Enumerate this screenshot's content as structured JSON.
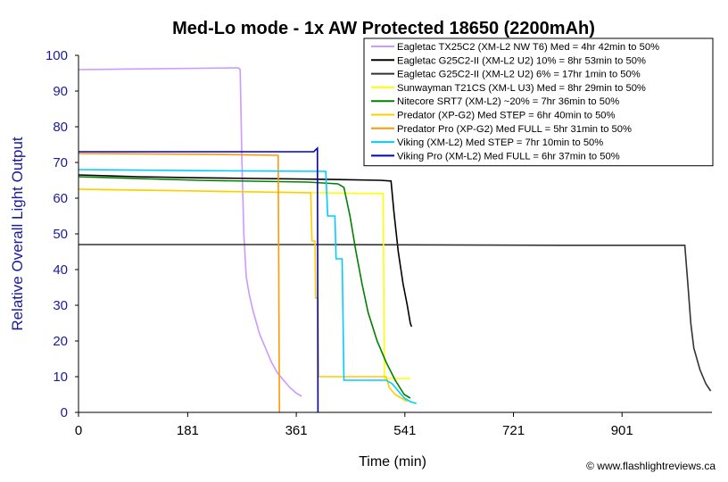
{
  "chart_data": {
    "type": "line",
    "title": "Med-Lo mode - 1x AW Protected 18650 (2200mAh)",
    "xlabel": "Time (min)",
    "ylabel": "Relative Overall Light Output",
    "xticks": [
      0,
      181,
      361,
      541,
      721,
      901
    ],
    "yticks": [
      0,
      10,
      20,
      30,
      40,
      50,
      60,
      70,
      80,
      90,
      100
    ],
    "xlim": [
      0,
      1050
    ],
    "ylim": [
      0,
      100
    ],
    "grid": false,
    "legend_position": "top-right",
    "credit": "© www.flashlightreviews.ca",
    "series": [
      {
        "name": "Eagletac TX25C2 (XM-L2 NW T6) Med = 4hr 42min to 50%",
        "color": "#cc99ff",
        "points": [
          [
            0,
            96
          ],
          [
            265,
            96.5
          ],
          [
            268,
            96
          ],
          [
            271,
            70
          ],
          [
            274,
            50
          ],
          [
            278,
            38
          ],
          [
            283,
            33
          ],
          [
            290,
            28
          ],
          [
            300,
            22
          ],
          [
            310,
            18
          ],
          [
            320,
            14
          ],
          [
            330,
            11
          ],
          [
            340,
            9
          ],
          [
            350,
            7
          ],
          [
            360,
            5.5
          ],
          [
            370,
            4.5
          ]
        ]
      },
      {
        "name": "Eagletac G25C2-II (XM-L2 U2) 10% = 8hr 53min to 50%",
        "color": "#000000",
        "points": [
          [
            0,
            66.5
          ],
          [
            100,
            66
          ],
          [
            200,
            65.7
          ],
          [
            300,
            65.5
          ],
          [
            400,
            65.3
          ],
          [
            500,
            65
          ],
          [
            518,
            64.8
          ],
          [
            523,
            56
          ],
          [
            530,
            45
          ],
          [
            538,
            36
          ],
          [
            545,
            30
          ],
          [
            550,
            25
          ],
          [
            552,
            24
          ]
        ]
      },
      {
        "name": "Eagletac G25C2-II (XM-L2 U2) 6% = 17hr 1min to 50%",
        "color": "#333333",
        "points": [
          [
            0,
            47
          ],
          [
            400,
            47
          ],
          [
            800,
            46.8
          ],
          [
            1005,
            46.8
          ],
          [
            1010,
            36
          ],
          [
            1015,
            25
          ],
          [
            1020,
            18
          ],
          [
            1030,
            12
          ],
          [
            1040,
            8
          ],
          [
            1048,
            6
          ]
        ]
      },
      {
        "name": "Sunwayman T21CS (XM-L U3) Med = 8hr 29min to 50%",
        "color": "#ffff00",
        "points": [
          [
            0,
            62.5
          ],
          [
            200,
            62
          ],
          [
            400,
            61.5
          ],
          [
            505,
            61.3
          ],
          [
            507,
            9.5
          ],
          [
            550,
            9.5
          ]
        ]
      },
      {
        "name": "Nitecore SRT7 (XM-L2) ~20% = 7hr 36min to 50%",
        "color": "#008000",
        "points": [
          [
            0,
            66
          ],
          [
            200,
            65
          ],
          [
            380,
            64.5
          ],
          [
            430,
            64
          ],
          [
            440,
            63
          ],
          [
            450,
            55
          ],
          [
            460,
            45
          ],
          [
            470,
            36
          ],
          [
            480,
            28
          ],
          [
            495,
            20
          ],
          [
            510,
            14
          ],
          [
            525,
            9
          ],
          [
            540,
            5
          ],
          [
            550,
            4
          ]
        ]
      },
      {
        "name": "Predator (XP-G2) Med STEP = 6hr 40min to 50%",
        "color": "#ffcc00",
        "points": [
          [
            0,
            62.5
          ],
          [
            200,
            62
          ],
          [
            380,
            61.5
          ],
          [
            385,
            61.5
          ],
          [
            387,
            48
          ],
          [
            392,
            48
          ],
          [
            393,
            32
          ],
          [
            397,
            32
          ],
          [
            398,
            10
          ],
          [
            510,
            10
          ],
          [
            515,
            7
          ],
          [
            525,
            5
          ],
          [
            535,
            4
          ],
          [
            545,
            3
          ]
        ]
      },
      {
        "name": "Predator Pro (XP-G2) Med FULL = 5hr 31min to 50%",
        "color": "#ff9900",
        "points": [
          [
            0,
            72.5
          ],
          [
            200,
            72.3
          ],
          [
            331,
            72
          ],
          [
            333,
            0
          ]
        ]
      },
      {
        "name": "Viking (XM-L2) Med STEP = 7hr 10min to 50%",
        "color": "#00ccff",
        "points": [
          [
            0,
            68
          ],
          [
            200,
            67.7
          ],
          [
            410,
            67.5
          ],
          [
            413,
            55
          ],
          [
            425,
            55
          ],
          [
            427,
            43
          ],
          [
            437,
            43
          ],
          [
            440,
            9
          ],
          [
            510,
            9
          ],
          [
            520,
            8
          ],
          [
            530,
            6
          ],
          [
            540,
            4
          ],
          [
            550,
            3
          ],
          [
            560,
            2.5
          ]
        ]
      },
      {
        "name": "Viking Pro (XM-L2) Med FULL = 6hr 37min to 50%",
        "color": "#0000cc",
        "points": [
          [
            0,
            73
          ],
          [
            200,
            73
          ],
          [
            390,
            73
          ],
          [
            396,
            74
          ],
          [
            397,
            0
          ]
        ]
      }
    ]
  }
}
